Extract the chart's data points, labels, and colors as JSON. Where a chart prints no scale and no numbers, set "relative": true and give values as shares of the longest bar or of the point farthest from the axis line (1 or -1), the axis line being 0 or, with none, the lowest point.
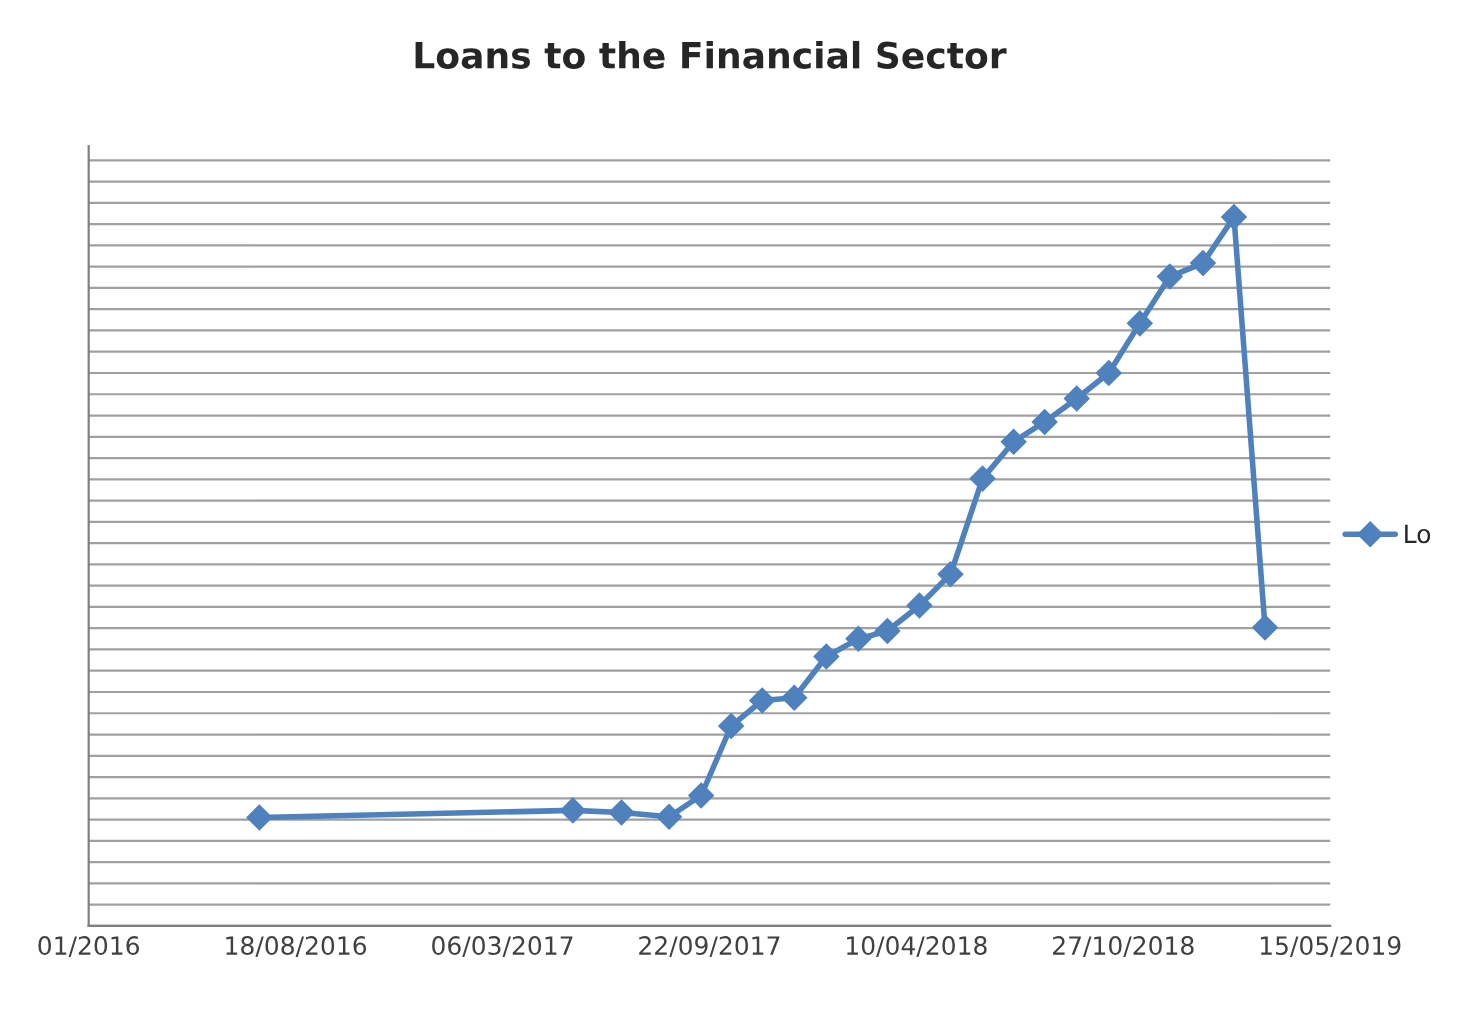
{
  "chart_data": {
    "type": "line",
    "title": "Loans to the Financial Sector",
    "relative": true,
    "x": [
      "2016-07-14",
      "2017-05-13",
      "2017-06-29",
      "2017-08-14",
      "2017-09-14",
      "2017-10-13",
      "2017-11-12",
      "2017-12-13",
      "2018-01-13",
      "2018-02-13",
      "2018-03-13",
      "2018-04-13",
      "2018-05-13",
      "2018-06-13",
      "2018-07-13",
      "2018-08-12",
      "2018-09-12",
      "2018-10-13",
      "2018-11-12",
      "2018-12-11",
      "2019-01-12",
      "2019-02-11",
      "2019-03-13"
    ],
    "series": [
      {
        "name": "Lo",
        "color": "#4f81bd",
        "values": [
          0.153,
          0.163,
          0.16,
          0.154,
          0.184,
          0.282,
          0.318,
          0.322,
          0.38,
          0.405,
          0.416,
          0.452,
          0.496,
          0.631,
          0.683,
          0.711,
          0.744,
          0.78,
          0.85,
          0.916,
          0.935,
          1,
          0.421
        ]
      }
    ],
    "xlim": [
      "2016-01-31",
      "2019-05-15"
    ],
    "xticks": [
      {
        "value": "2016-01-31",
        "label": "01/2016"
      },
      {
        "value": "2016-08-18",
        "label": "18/08/2016"
      },
      {
        "value": "2017-03-06",
        "label": "06/03/2017"
      },
      {
        "value": "2017-09-22",
        "label": "22/09/2017"
      },
      {
        "value": "2018-04-10",
        "label": "10/04/2018"
      },
      {
        "value": "2018-10-27",
        "label": "27/10/2018"
      },
      {
        "value": "2019-05-15",
        "label": "15/05/2019"
      }
    ],
    "grid": "y",
    "legend": "right",
    "marker": "diamond",
    "line_style": "solid"
  }
}
